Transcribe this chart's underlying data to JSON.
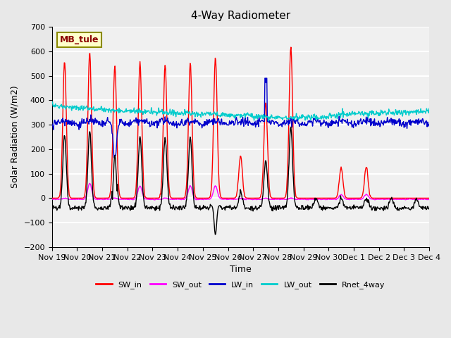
{
  "title": "4-Way Radiometer",
  "xlabel": "Time",
  "ylabel": "Solar Radiation (W/m2)",
  "site_label": "MB_tule",
  "ylim": [
    -200,
    700
  ],
  "yticks": [
    -200,
    -100,
    0,
    100,
    200,
    300,
    400,
    500,
    600,
    700
  ],
  "x_tick_labels": [
    "Nov 19",
    "Nov 20",
    "Nov 21",
    "Nov 22",
    "Nov 23",
    "Nov 24",
    "Nov 25",
    "Nov 26",
    "Nov 27",
    "Nov 28",
    "Nov 29",
    "Nov 30",
    "Dec 1",
    "Dec 2",
    "Dec 3",
    "Dec 4"
  ],
  "colors": {
    "SW_in": "#FF0000",
    "SW_out": "#FF00FF",
    "LW_in": "#0000CC",
    "LW_out": "#00CCCC",
    "Rnet_4way": "#000000"
  },
  "legend_labels": [
    "SW_in",
    "SW_out",
    "LW_in",
    "LW_out",
    "Rnet_4way"
  ],
  "background_color": "#E8E8E8",
  "plot_bg_color": "#F0F0F0",
  "grid_color": "#FFFFFF"
}
